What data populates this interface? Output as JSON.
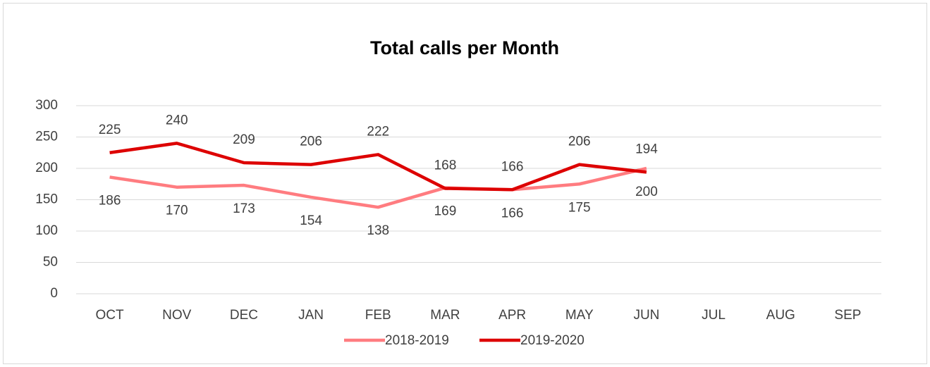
{
  "chart_data": {
    "type": "line",
    "title": "Total calls per Month",
    "categories": [
      "OCT",
      "NOV",
      "DEC",
      "JAN",
      "FEB",
      "MAR",
      "APR",
      "MAY",
      "JUN",
      "JUL",
      "AUG",
      "SEP"
    ],
    "series": [
      {
        "name": "2018-2019",
        "color": "#ff7c80",
        "values": [
          186,
          170,
          173,
          154,
          138,
          169,
          166,
          175,
          200,
          null,
          null,
          null
        ]
      },
      {
        "name": "2019-2020",
        "color": "#dd0000",
        "values": [
          225,
          240,
          209,
          206,
          222,
          168,
          166,
          206,
          194,
          null,
          null,
          null
        ]
      }
    ],
    "ylim": [
      0,
      300
    ],
    "yticks": [
      0,
      50,
      100,
      150,
      200,
      250,
      300
    ],
    "grid": true,
    "legend": "bottom"
  }
}
